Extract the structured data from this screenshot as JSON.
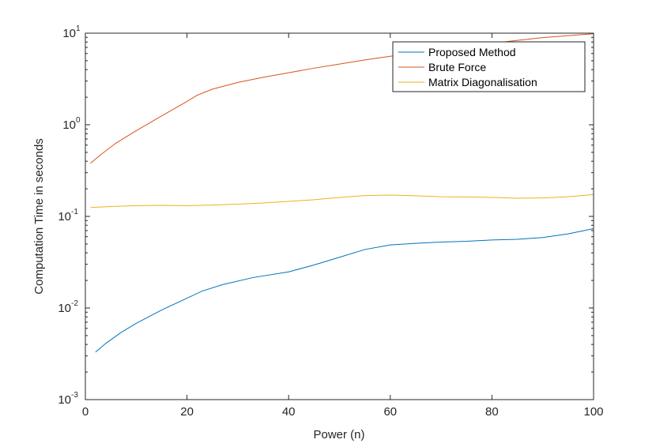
{
  "chart_data": {
    "type": "line",
    "title": "",
    "xlabel": "Power (n)",
    "ylabel": "Computation Time in seconds",
    "xlim": [
      0,
      100
    ],
    "ylim": [
      0.001,
      10
    ],
    "yscale": "log",
    "grid": false,
    "legend_position": "top-right",
    "x_ticks": [
      "0",
      "20",
      "40",
      "60",
      "80",
      "100"
    ],
    "y_ticks": [
      {
        "base": "10",
        "exp": "-3"
      },
      {
        "base": "10",
        "exp": "-2"
      },
      {
        "base": "10",
        "exp": "-1"
      },
      {
        "base": "10",
        "exp": "0"
      },
      {
        "base": "10",
        "exp": "1"
      }
    ],
    "series": [
      {
        "name": "Proposed Method",
        "color": "#0072BD",
        "x": [
          2,
          4,
          7,
          10,
          15,
          20,
          23,
          27,
          33,
          40,
          45,
          50,
          55,
          60,
          65,
          70,
          75,
          80,
          85,
          90,
          95,
          100
        ],
        "y": [
          0.0033,
          0.0041,
          0.0054,
          0.0068,
          0.0095,
          0.0128,
          0.0153,
          0.018,
          0.0215,
          0.0248,
          0.0295,
          0.0358,
          0.0435,
          0.0488,
          0.0508,
          0.0525,
          0.0535,
          0.0553,
          0.0562,
          0.0588,
          0.0645,
          0.0735
        ]
      },
      {
        "name": "Brute Force",
        "color": "#D95319",
        "x": [
          1,
          3,
          6,
          10,
          15,
          20,
          22,
          25,
          30,
          35,
          40,
          45,
          50,
          55,
          60,
          65,
          70,
          75,
          80,
          85,
          90,
          95,
          100
        ],
        "y": [
          0.38,
          0.47,
          0.63,
          0.86,
          1.25,
          1.8,
          2.1,
          2.45,
          2.9,
          3.3,
          3.7,
          4.15,
          4.6,
          5.1,
          5.6,
          6.1,
          6.6,
          7.15,
          7.75,
          8.35,
          8.95,
          9.4,
          9.85
        ]
      },
      {
        "name": "Matrix Diagonalisation",
        "color": "#EDB120",
        "x": [
          1,
          5,
          10,
          15,
          20,
          25,
          30,
          35,
          40,
          45,
          50,
          55,
          60,
          65,
          70,
          75,
          80,
          85,
          90,
          95,
          100
        ],
        "y": [
          0.125,
          0.128,
          0.131,
          0.132,
          0.131,
          0.133,
          0.136,
          0.14,
          0.146,
          0.152,
          0.161,
          0.169,
          0.171,
          0.168,
          0.164,
          0.163,
          0.161,
          0.158,
          0.159,
          0.164,
          0.173
        ]
      }
    ]
  }
}
